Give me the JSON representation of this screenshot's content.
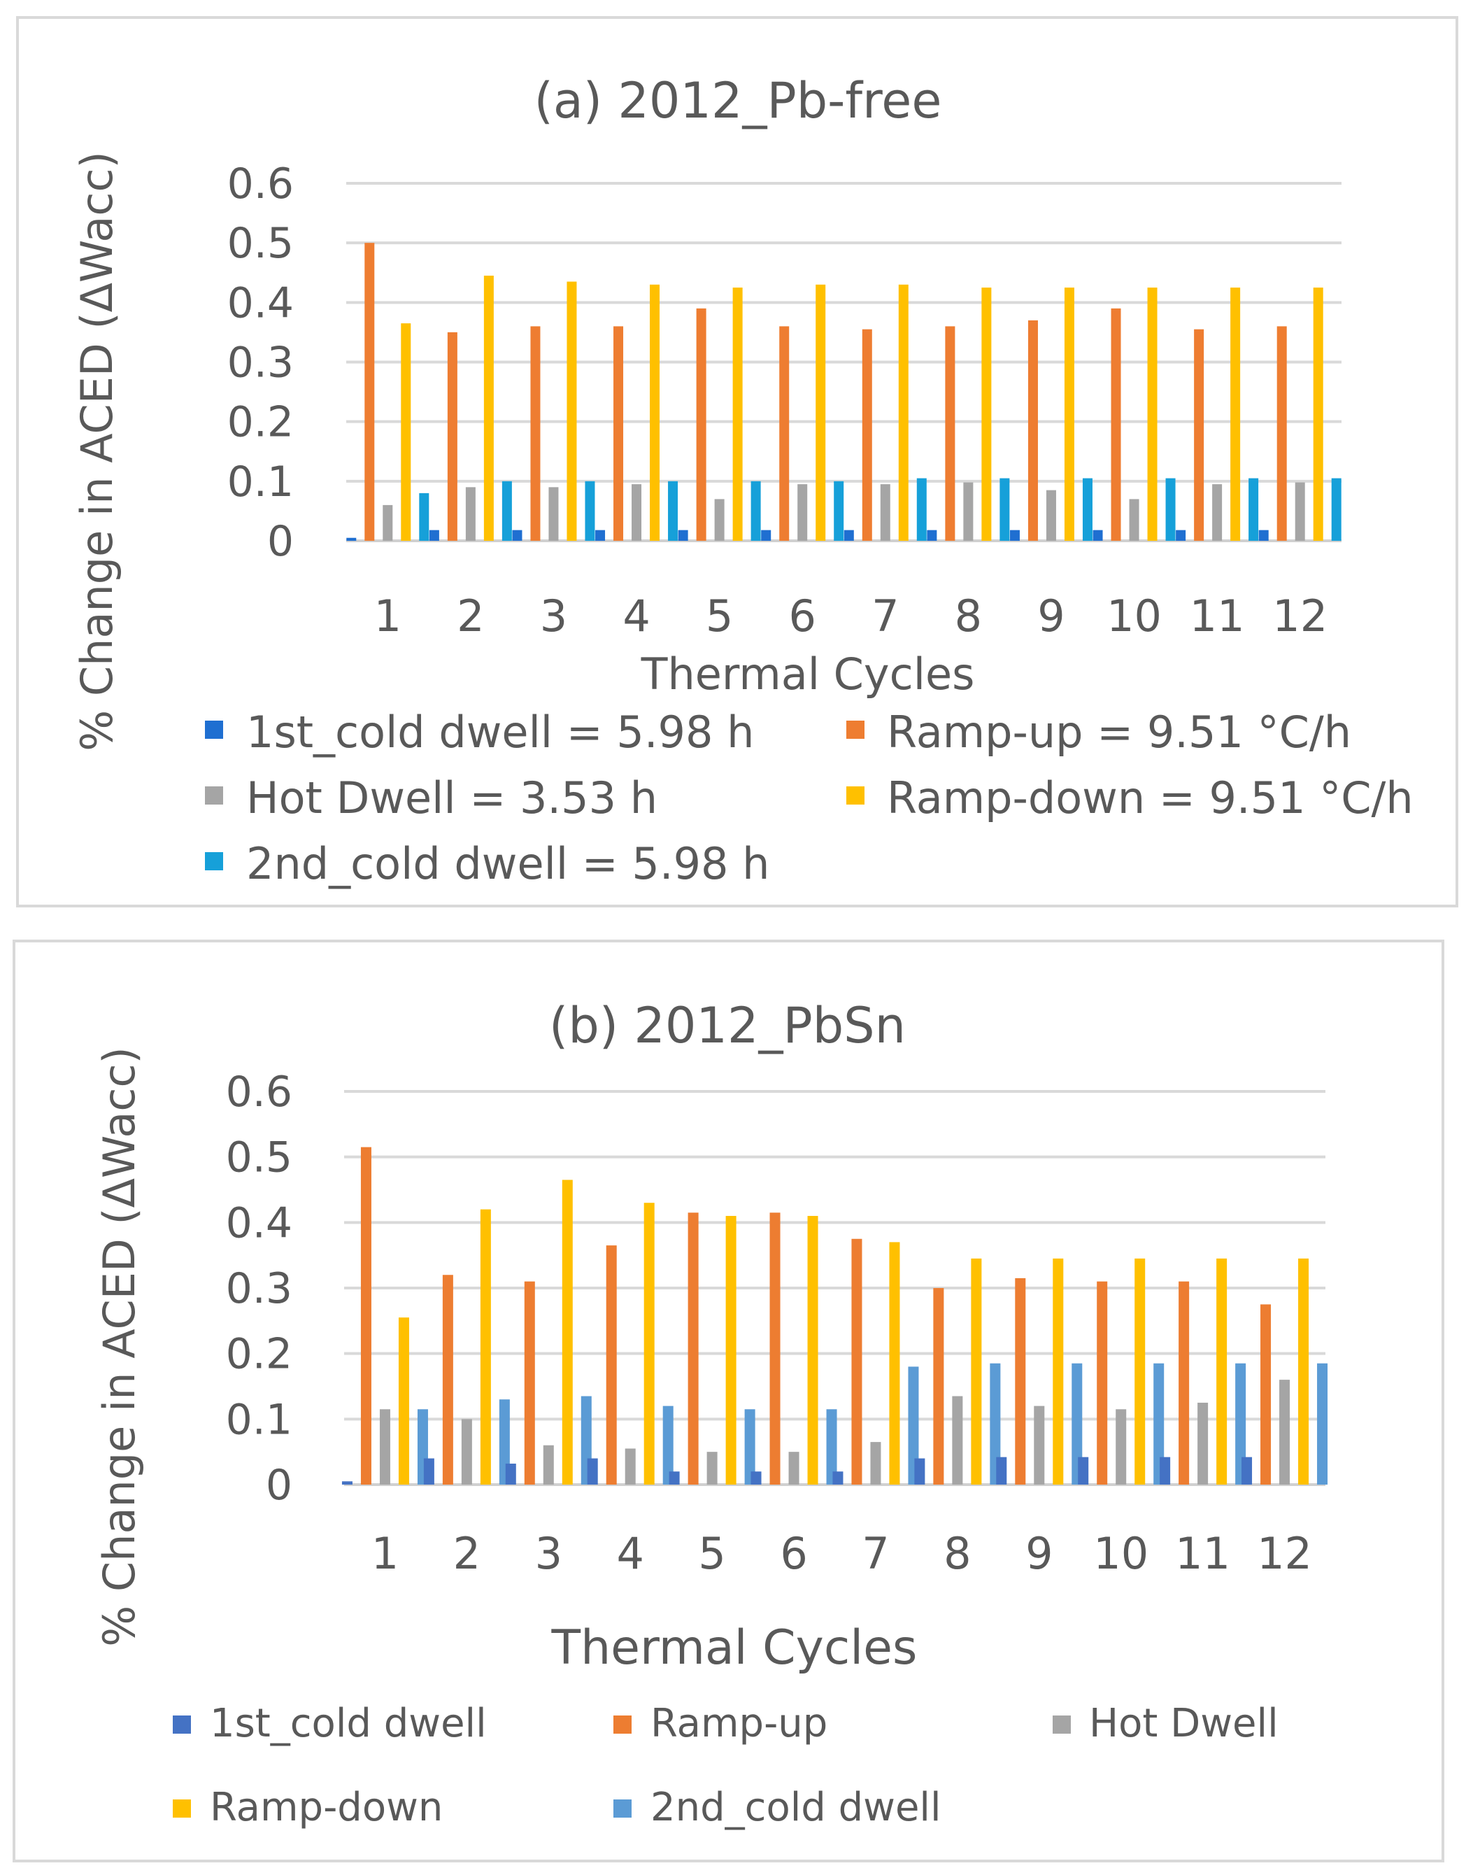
{
  "chart_data": [
    {
      "type": "bar",
      "title": "(a) 2012_Pb-free",
      "xlabel": "Thermal Cycles",
      "ylabel": "% Change in ACED (ΔWacc)",
      "ylim": [
        0,
        0.6
      ],
      "yticks": [
        0,
        0.1,
        0.2,
        0.3,
        0.4,
        0.5,
        0.6
      ],
      "ytick_labels": [
        "0",
        "0.1",
        "0.2",
        "0.3",
        "0.4",
        "0.5",
        "0.6"
      ],
      "categories": [
        "1",
        "2",
        "3",
        "4",
        "5",
        "6",
        "7",
        "8",
        "9",
        "10",
        "11",
        "12"
      ],
      "grid": true,
      "legend_position": "bottom",
      "series": [
        {
          "name": "1st_cold dwell",
          "legend": "1st_cold dwell = 5.98 h",
          "color": "#1f6fd1",
          "values": [
            0.005,
            0.018,
            0.018,
            0.018,
            0.018,
            0.018,
            0.018,
            0.018,
            0.018,
            0.018,
            0.018,
            0.018
          ]
        },
        {
          "name": "Ramp-up",
          "legend": "Ramp-up = 9.51 °C/h",
          "color": "#ee7d31",
          "values": [
            0.5,
            0.35,
            0.36,
            0.36,
            0.39,
            0.36,
            0.355,
            0.36,
            0.37,
            0.39,
            0.355,
            0.36
          ]
        },
        {
          "name": "Hot Dwell",
          "legend": "Hot Dwell = 3.53 h",
          "color": "#a5a5a5",
          "values": [
            0.06,
            0.09,
            0.09,
            0.095,
            0.07,
            0.095,
            0.095,
            0.098,
            0.085,
            0.07,
            0.095,
            0.098
          ]
        },
        {
          "name": "Ramp-down",
          "legend": "Ramp-down = 9.51 °C/h",
          "color": "#ffc000",
          "values": [
            0.365,
            0.445,
            0.435,
            0.43,
            0.425,
            0.43,
            0.43,
            0.425,
            0.425,
            0.425,
            0.425,
            0.425
          ]
        },
        {
          "name": "2nd_cold dwell",
          "legend": "2nd_cold dwell = 5.98 h",
          "color": "#16a0d9",
          "values": [
            0.08,
            0.1,
            0.1,
            0.1,
            0.1,
            0.1,
            0.105,
            0.105,
            0.105,
            0.105,
            0.105,
            0.105
          ]
        }
      ]
    },
    {
      "type": "bar",
      "title": "(b) 2012_PbSn",
      "xlabel": "Thermal Cycles",
      "ylabel": "% Change in ACED (ΔWacc)",
      "ylim": [
        0,
        0.6
      ],
      "yticks": [
        0,
        0.1,
        0.2,
        0.3,
        0.4,
        0.5,
        0.6
      ],
      "ytick_labels": [
        "0",
        "0.1",
        "0.2",
        "0.3",
        "0.4",
        "0.5",
        "0.6"
      ],
      "categories": [
        "1",
        "2",
        "3",
        "4",
        "5",
        "6",
        "7",
        "8",
        "9",
        "10",
        "11",
        "12"
      ],
      "grid": true,
      "legend_position": "bottom",
      "series": [
        {
          "name": "1st_cold dwell",
          "legend": "1st_cold dwell",
          "color": "#4472c4",
          "values": [
            0.005,
            0.04,
            0.032,
            0.04,
            0.02,
            0.02,
            0.02,
            0.04,
            0.042,
            0.042,
            0.042,
            0.042
          ]
        },
        {
          "name": "Ramp-up",
          "legend": "Ramp-up",
          "color": "#ed7d31",
          "values": [
            0.515,
            0.32,
            0.31,
            0.365,
            0.415,
            0.415,
            0.375,
            0.3,
            0.315,
            0.31,
            0.31,
            0.275
          ]
        },
        {
          "name": "Hot Dwell",
          "legend": "Hot Dwell",
          "color": "#a5a5a5",
          "values": [
            0.115,
            0.1,
            0.06,
            0.055,
            0.05,
            0.05,
            0.065,
            0.135,
            0.12,
            0.115,
            0.125,
            0.16
          ]
        },
        {
          "name": "Ramp-down",
          "legend": "Ramp-down",
          "color": "#ffc000",
          "values": [
            0.255,
            0.42,
            0.465,
            0.43,
            0.41,
            0.41,
            0.37,
            0.345,
            0.345,
            0.345,
            0.345,
            0.345
          ]
        },
        {
          "name": "2nd_cold dwell",
          "legend": "2nd_cold dwell",
          "color": "#5b9bd5",
          "values": [
            0.115,
            0.13,
            0.135,
            0.12,
            0.115,
            0.115,
            0.18,
            0.185,
            0.185,
            0.185,
            0.185,
            0.185
          ]
        }
      ]
    }
  ]
}
